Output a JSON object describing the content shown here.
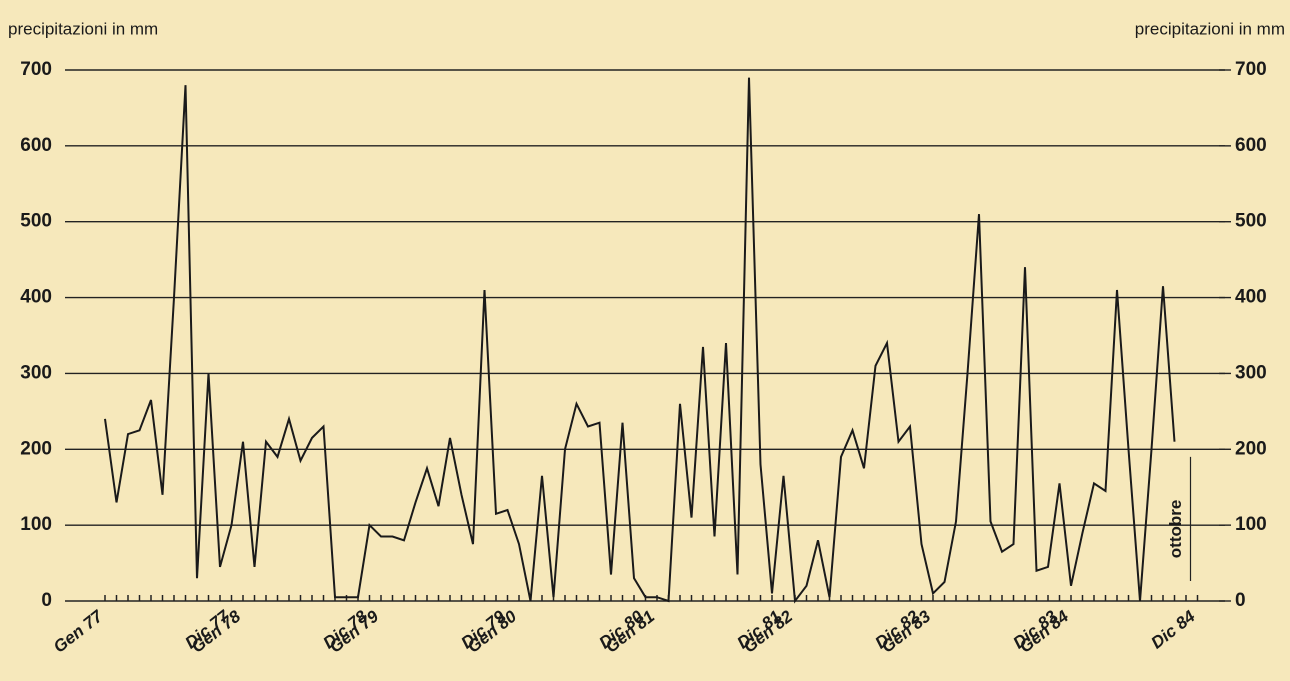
{
  "chart_data": {
    "type": "line",
    "ylabel": "precipitazioni in mm",
    "y2label": "precipitazioni in mm",
    "categories": [
      "Gen 77",
      null,
      null,
      null,
      null,
      null,
      null,
      null,
      null,
      null,
      null,
      "Dic 77",
      "Gen 78",
      null,
      null,
      null,
      null,
      null,
      null,
      null,
      null,
      null,
      null,
      "Dic 78",
      "Gen 79",
      null,
      null,
      null,
      null,
      null,
      null,
      null,
      null,
      null,
      null,
      "Dic 79",
      "Gen 80",
      null,
      null,
      null,
      null,
      null,
      null,
      null,
      null,
      null,
      null,
      "Dic 80",
      "Gen 81",
      null,
      null,
      null,
      null,
      null,
      null,
      null,
      null,
      null,
      null,
      "Dic 81",
      "Gen 82",
      null,
      null,
      null,
      null,
      null,
      null,
      null,
      null,
      null,
      null,
      "Dic 82",
      "Gen 83",
      null,
      null,
      null,
      null,
      null,
      null,
      null,
      null,
      null,
      null,
      "Dic 83",
      "Gen 84",
      null,
      null,
      null,
      null,
      null,
      null,
      null,
      null,
      null,
      null,
      "Dic 84"
    ],
    "values": [
      240,
      130,
      220,
      225,
      265,
      140,
      400,
      680,
      30,
      300,
      45,
      100,
      210,
      45,
      210,
      190,
      240,
      185,
      215,
      230,
      5,
      5,
      5,
      100,
      85,
      85,
      80,
      130,
      175,
      125,
      215,
      140,
      75,
      410,
      115,
      120,
      75,
      0,
      165,
      5,
      200,
      260,
      230,
      235,
      35,
      235,
      30,
      5,
      5,
      0,
      260,
      110,
      335,
      85,
      340,
      35,
      690,
      180,
      10,
      165,
      0,
      20,
      80,
      5,
      190,
      225,
      175,
      310,
      340,
      210,
      230,
      75,
      10,
      25,
      105,
      300,
      510,
      105,
      65,
      75,
      440,
      40,
      45,
      155,
      20,
      90,
      155,
      145,
      410,
      200,
      0,
      200,
      415,
      210,
      null,
      null
    ],
    "color": "#1a1a1a",
    "ylim": [
      0,
      700
    ],
    "yticks": [
      0,
      100,
      200,
      300,
      400,
      500,
      600,
      700
    ],
    "y2lim": [
      0,
      700
    ],
    "y2ticks": [
      0,
      100,
      200,
      300,
      400,
      500,
      600,
      700
    ],
    "grid": true,
    "annotation": {
      "text": "ottobre",
      "index": 93
    }
  }
}
